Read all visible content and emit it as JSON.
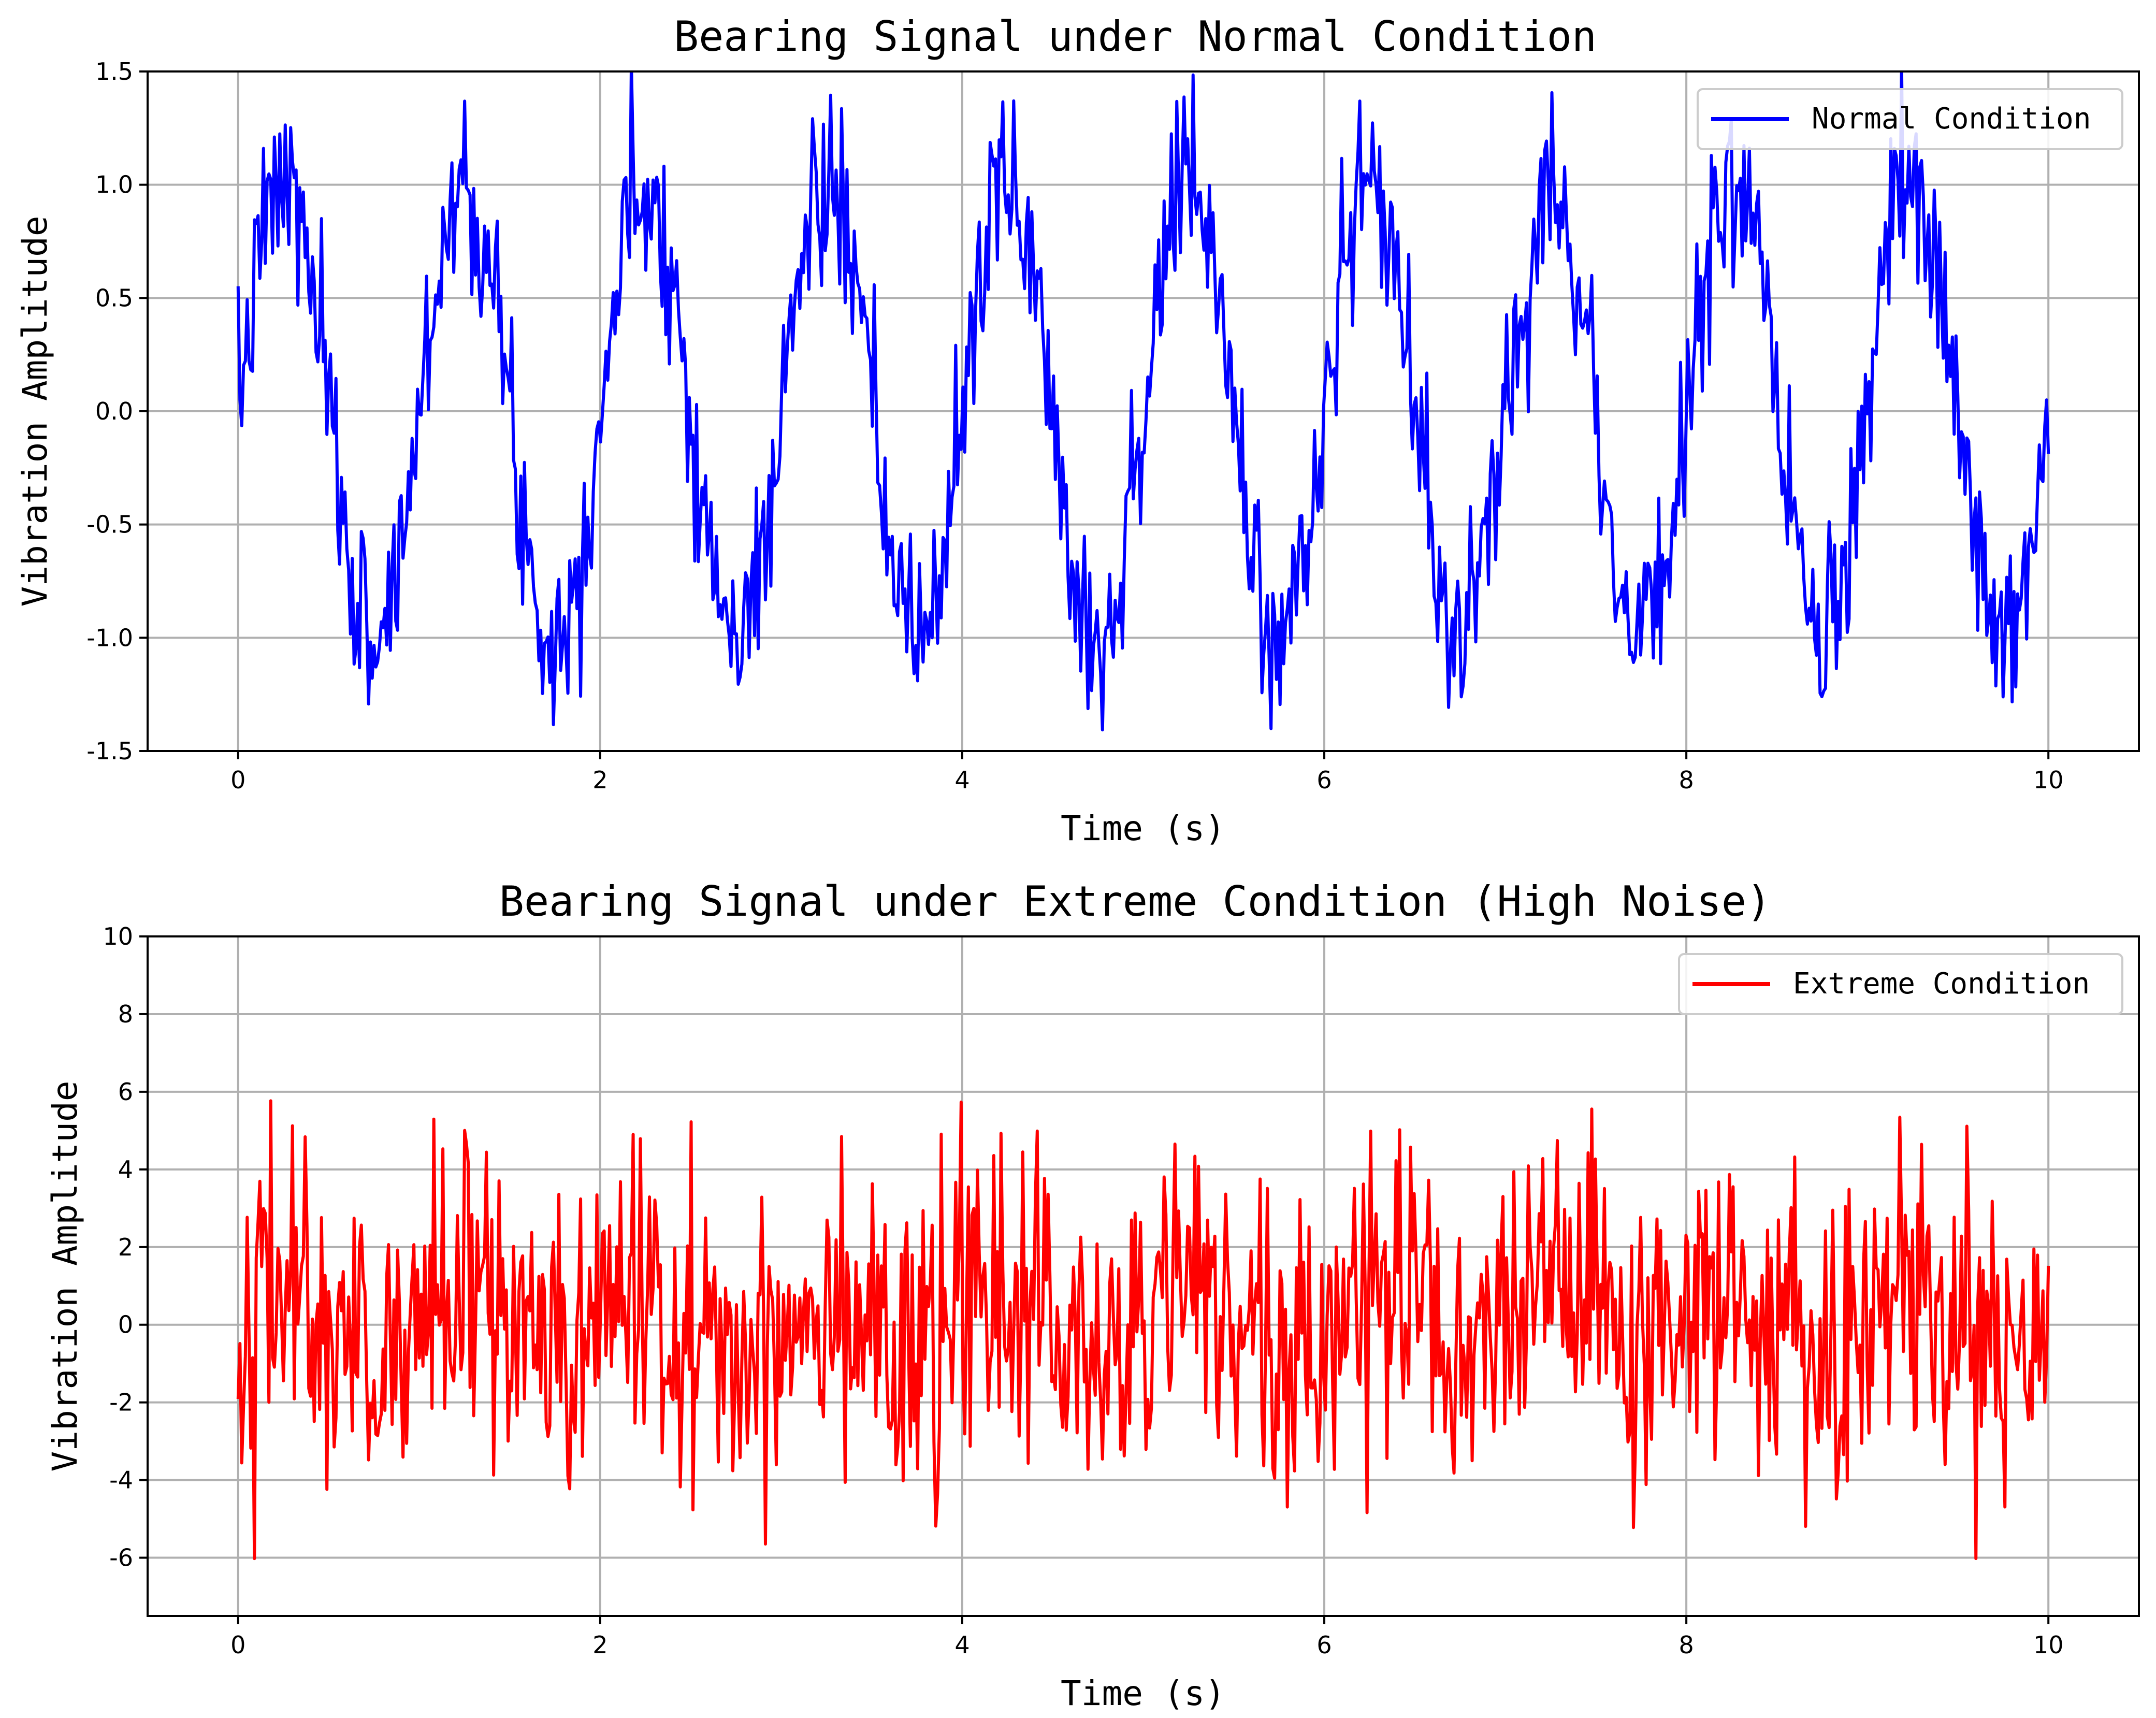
{
  "chart_data": [
    {
      "type": "line",
      "title": "Bearing Signal under Normal Condition",
      "xlabel": "Time (s)",
      "ylabel": "Vibration Amplitude",
      "xlim": [
        -0.5,
        10.5
      ],
      "ylim": [
        -1.5,
        1.5
      ],
      "xticks": [
        0,
        2,
        4,
        6,
        8,
        10
      ],
      "xtick_labels": [
        "0",
        "2",
        "4",
        "6",
        "8",
        "10"
      ],
      "yticks": [
        -1.5,
        -1.0,
        -0.5,
        0.0,
        0.5,
        1.0,
        1.5
      ],
      "ytick_labels": [
        "-1.5",
        "-1.0",
        "-0.5",
        "0.0",
        "0.5",
        "1.0",
        "1.5"
      ],
      "grid": true,
      "legend_position": "top-right",
      "series": [
        {
          "name": "Normal Condition",
          "color": "#0000ff",
          "generator": "sine",
          "x_range": [
            0,
            10
          ],
          "n_points": 1000,
          "frequency_hz": 1,
          "amplitude": 1.0,
          "noise_std": 0.2,
          "noise_seed": 7
        }
      ]
    },
    {
      "type": "line",
      "title": "Bearing Signal under Extreme Condition (High Noise)",
      "xlabel": "Time (s)",
      "ylabel": "Vibration Amplitude",
      "xlim": [
        -0.5,
        10.5
      ],
      "ylim": [
        -7.5,
        10
      ],
      "xticks": [
        0,
        2,
        4,
        6,
        8,
        10
      ],
      "xtick_labels": [
        "0",
        "2",
        "4",
        "6",
        "8",
        "10"
      ],
      "yticks": [
        -6,
        -4,
        -2,
        0,
        2,
        4,
        6,
        8,
        10
      ],
      "ytick_labels": [
        "-6",
        "-4",
        "-2",
        "0",
        "2",
        "4",
        "6",
        "8",
        "10"
      ],
      "grid": true,
      "legend_position": "top-right",
      "series": [
        {
          "name": "Extreme Condition",
          "color": "#ff0000",
          "generator": "sine",
          "x_range": [
            0,
            10
          ],
          "n_points": 1000,
          "frequency_hz": 1,
          "amplitude": 1.0,
          "noise_std": 2.0,
          "noise_seed": 42
        }
      ]
    }
  ]
}
